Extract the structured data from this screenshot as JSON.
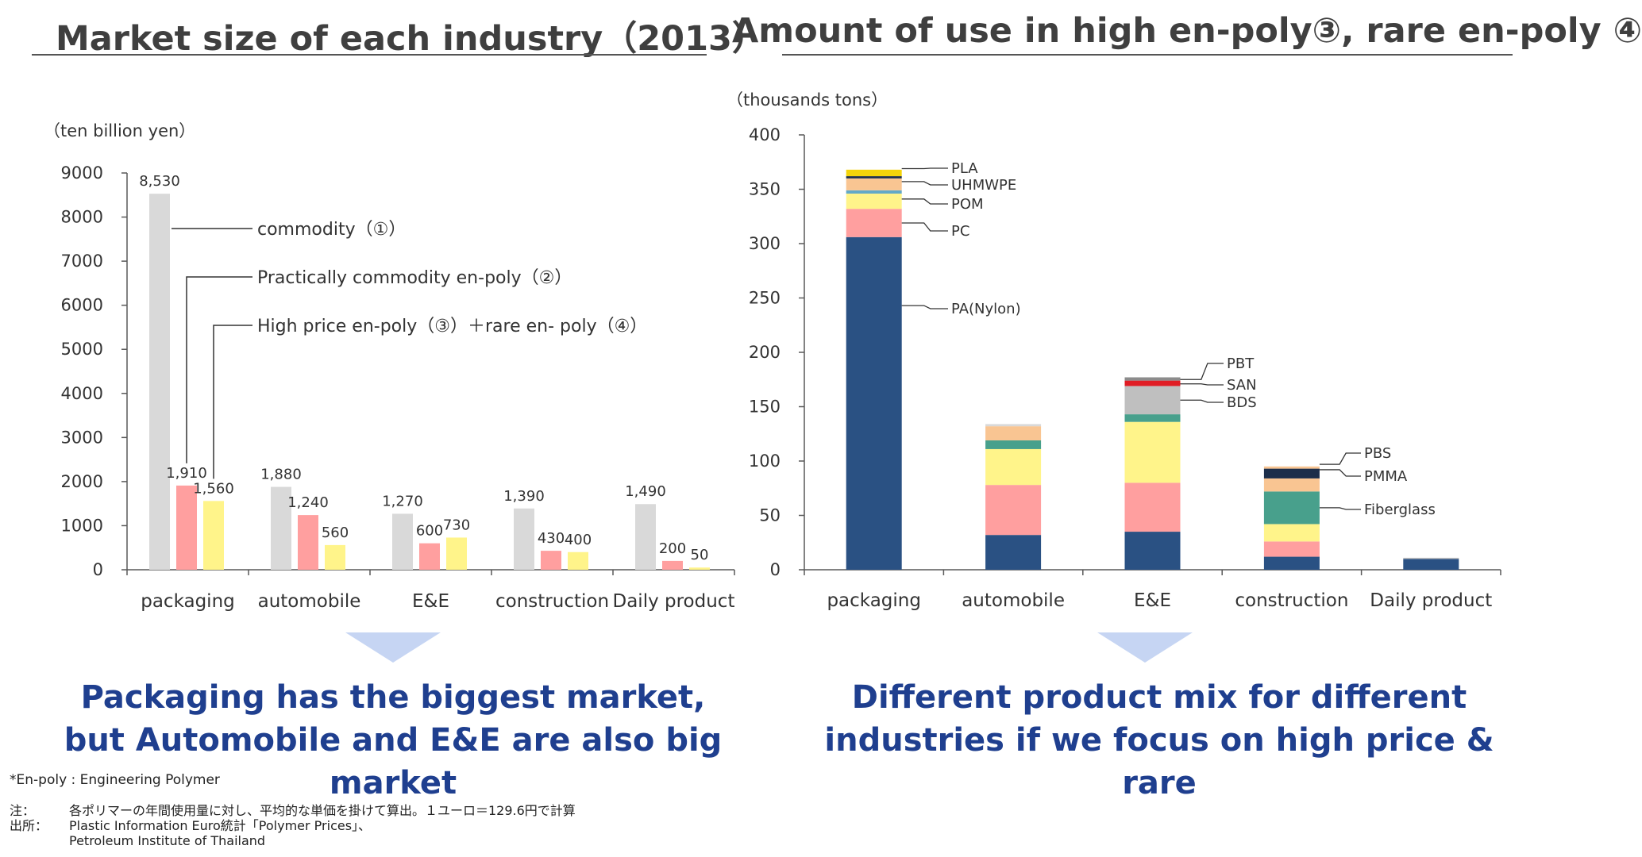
{
  "left": {
    "title": "Market size of each industry（2013）",
    "summary": "Packaging has the biggest market, but Automobile and E&E are also big market"
  },
  "right": {
    "title": "Amount of use in high en-poly③, rare en-poly ④",
    "summary": "Different product mix for different industries if we focus on high price & rare"
  },
  "footnote": "*En-poly : Engineering Polymer",
  "notes": [
    {
      "key": "注：",
      "text": "各ポリマーの年間使用量に対し、平均的な単価を掛けて算出。１ユーロ＝129.6円で計算"
    },
    {
      "key": "出所：",
      "text": "Plastic Information Euro統計「Polymer Prices」、"
    },
    {
      "key": "",
      "text": "Petroleum Institute of Thailand"
    }
  ],
  "chart_data": [
    {
      "type": "bar",
      "title": "Market size of each industry（2013）",
      "ylabel": "（ten billion yen）",
      "ylim": [
        0,
        9000
      ],
      "yticks": [
        0,
        1000,
        2000,
        3000,
        4000,
        5000,
        6000,
        7000,
        8000,
        9000
      ],
      "categories": [
        "packaging",
        "automobile",
        "E&E",
        "construction",
        "Daily product"
      ],
      "series": [
        {
          "name": "commodity（①）",
          "color": "#d9d9d9",
          "values": [
            8530,
            1880,
            1270,
            1390,
            1490
          ],
          "labels": [
            "8,530",
            "1,880",
            "1,270",
            "1,390",
            "1,490"
          ]
        },
        {
          "name": "Practically commodity en-poly（②）",
          "color": "#ff9f9f",
          "values": [
            1910,
            1240,
            600,
            430,
            200
          ],
          "labels": [
            "1,910",
            "1,240",
            "600",
            "430",
            "200"
          ]
        },
        {
          "name": "High price en-poly（③）＋rare en- poly（④）",
          "color": "#fff48a",
          "values": [
            1560,
            560,
            730,
            400,
            50
          ],
          "labels": [
            "1,560",
            "560",
            "730",
            "400",
            "50"
          ]
        }
      ],
      "legend": "callouts"
    },
    {
      "type": "bar",
      "stacked": true,
      "title": "Amount of use in high en-poly③, rare en-poly ④",
      "ylabel": "（thousands tons）",
      "ylim": [
        0,
        400
      ],
      "yticks": [
        0,
        50,
        100,
        150,
        200,
        250,
        300,
        350,
        400
      ],
      "categories": [
        "packaging",
        "automobile",
        "E&E",
        "construction",
        "Daily product"
      ],
      "segments": [
        [
          {
            "value": 306,
            "color": "#2a5183"
          },
          {
            "value": 26,
            "color": "#ff9f9f"
          },
          {
            "value": 14,
            "color": "#fff48a"
          },
          {
            "value": 3,
            "color": "#63a9c8"
          },
          {
            "value": 11,
            "color": "#f9c592"
          },
          {
            "value": 2,
            "color": "#1c2e4a"
          },
          {
            "value": 6,
            "color": "#f4d40a"
          }
        ],
        [
          {
            "value": 32,
            "color": "#2a5183"
          },
          {
            "value": 46,
            "color": "#ff9f9f"
          },
          {
            "value": 33,
            "color": "#fff48a"
          },
          {
            "value": 8,
            "color": "#48a08c"
          },
          {
            "value": 13,
            "color": "#f9c592"
          },
          {
            "value": 2,
            "color": "#d9d9d9"
          }
        ],
        [
          {
            "value": 35,
            "color": "#2a5183"
          },
          {
            "value": 45,
            "color": "#ff9f9f"
          },
          {
            "value": 56,
            "color": "#fff48a"
          },
          {
            "value": 7,
            "color": "#48a08c"
          },
          {
            "value": 26,
            "color": "#bfbfbf"
          },
          {
            "value": 5,
            "color": "#e01c24"
          },
          {
            "value": 3,
            "color": "#8c8c8c"
          }
        ],
        [
          {
            "value": 12,
            "color": "#2a5183"
          },
          {
            "value": 14,
            "color": "#ff9f9f"
          },
          {
            "value": 16,
            "color": "#fff48a"
          },
          {
            "value": 30,
            "color": "#48a08c"
          },
          {
            "value": 12,
            "color": "#f9c592"
          },
          {
            "value": 9,
            "color": "#1c2e4a"
          },
          {
            "value": 2,
            "color": "#f9c592"
          }
        ],
        [
          {
            "value": 10,
            "color": "#2a5183"
          },
          {
            "value": 1,
            "color": "#bfbfbf"
          }
        ]
      ],
      "annotations": [
        {
          "text": "PLA",
          "category": "packaging",
          "at": 369
        },
        {
          "text": "UHMWPE",
          "category": "packaging",
          "at": 357
        },
        {
          "text": "POM",
          "category": "packaging",
          "at": 341
        },
        {
          "text": "PC",
          "category": "packaging",
          "at": 319
        },
        {
          "text": "PA(Nylon)",
          "category": "packaging",
          "at": 243
        },
        {
          "text": "PBT",
          "category": "E&E",
          "at": 175
        },
        {
          "text": "SAN",
          "category": "E&E",
          "at": 171
        },
        {
          "text": "BDS",
          "category": "E&E",
          "at": 156
        },
        {
          "text": "PBS",
          "category": "construction",
          "at": 97
        },
        {
          "text": "PMMA",
          "category": "construction",
          "at": 92
        },
        {
          "text": "Fiberglass",
          "category": "construction",
          "at": 57
        }
      ]
    }
  ]
}
